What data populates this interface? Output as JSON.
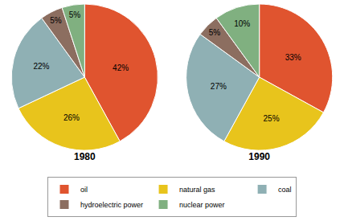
{
  "chart_data": [
    {
      "type": "pie",
      "title": "1980",
      "categories": [
        "oil",
        "natural gas",
        "coal",
        "hydroelectric power",
        "nuclear power"
      ],
      "values": [
        42,
        26,
        22,
        5,
        5
      ],
      "value_labels": [
        "42%",
        "26%",
        "22%",
        "5%",
        "5%"
      ],
      "colors": [
        "#e0542f",
        "#e8c41c",
        "#8fb0b4",
        "#8c6e60",
        "#80b080"
      ],
      "data_labels": true,
      "legend": "bottom"
    },
    {
      "type": "pie",
      "title": "1990",
      "categories": [
        "oil",
        "natural gas",
        "coal",
        "hydroelectric power",
        "nuclear power"
      ],
      "values": [
        33,
        25,
        27,
        5,
        10
      ],
      "value_labels": [
        "33%",
        "25%",
        "27%",
        "5%",
        "10%"
      ],
      "colors": [
        "#e0542f",
        "#e8c41c",
        "#8fb0b4",
        "#8c6e60",
        "#80b080"
      ],
      "data_labels": true,
      "legend": "bottom"
    }
  ]
}
